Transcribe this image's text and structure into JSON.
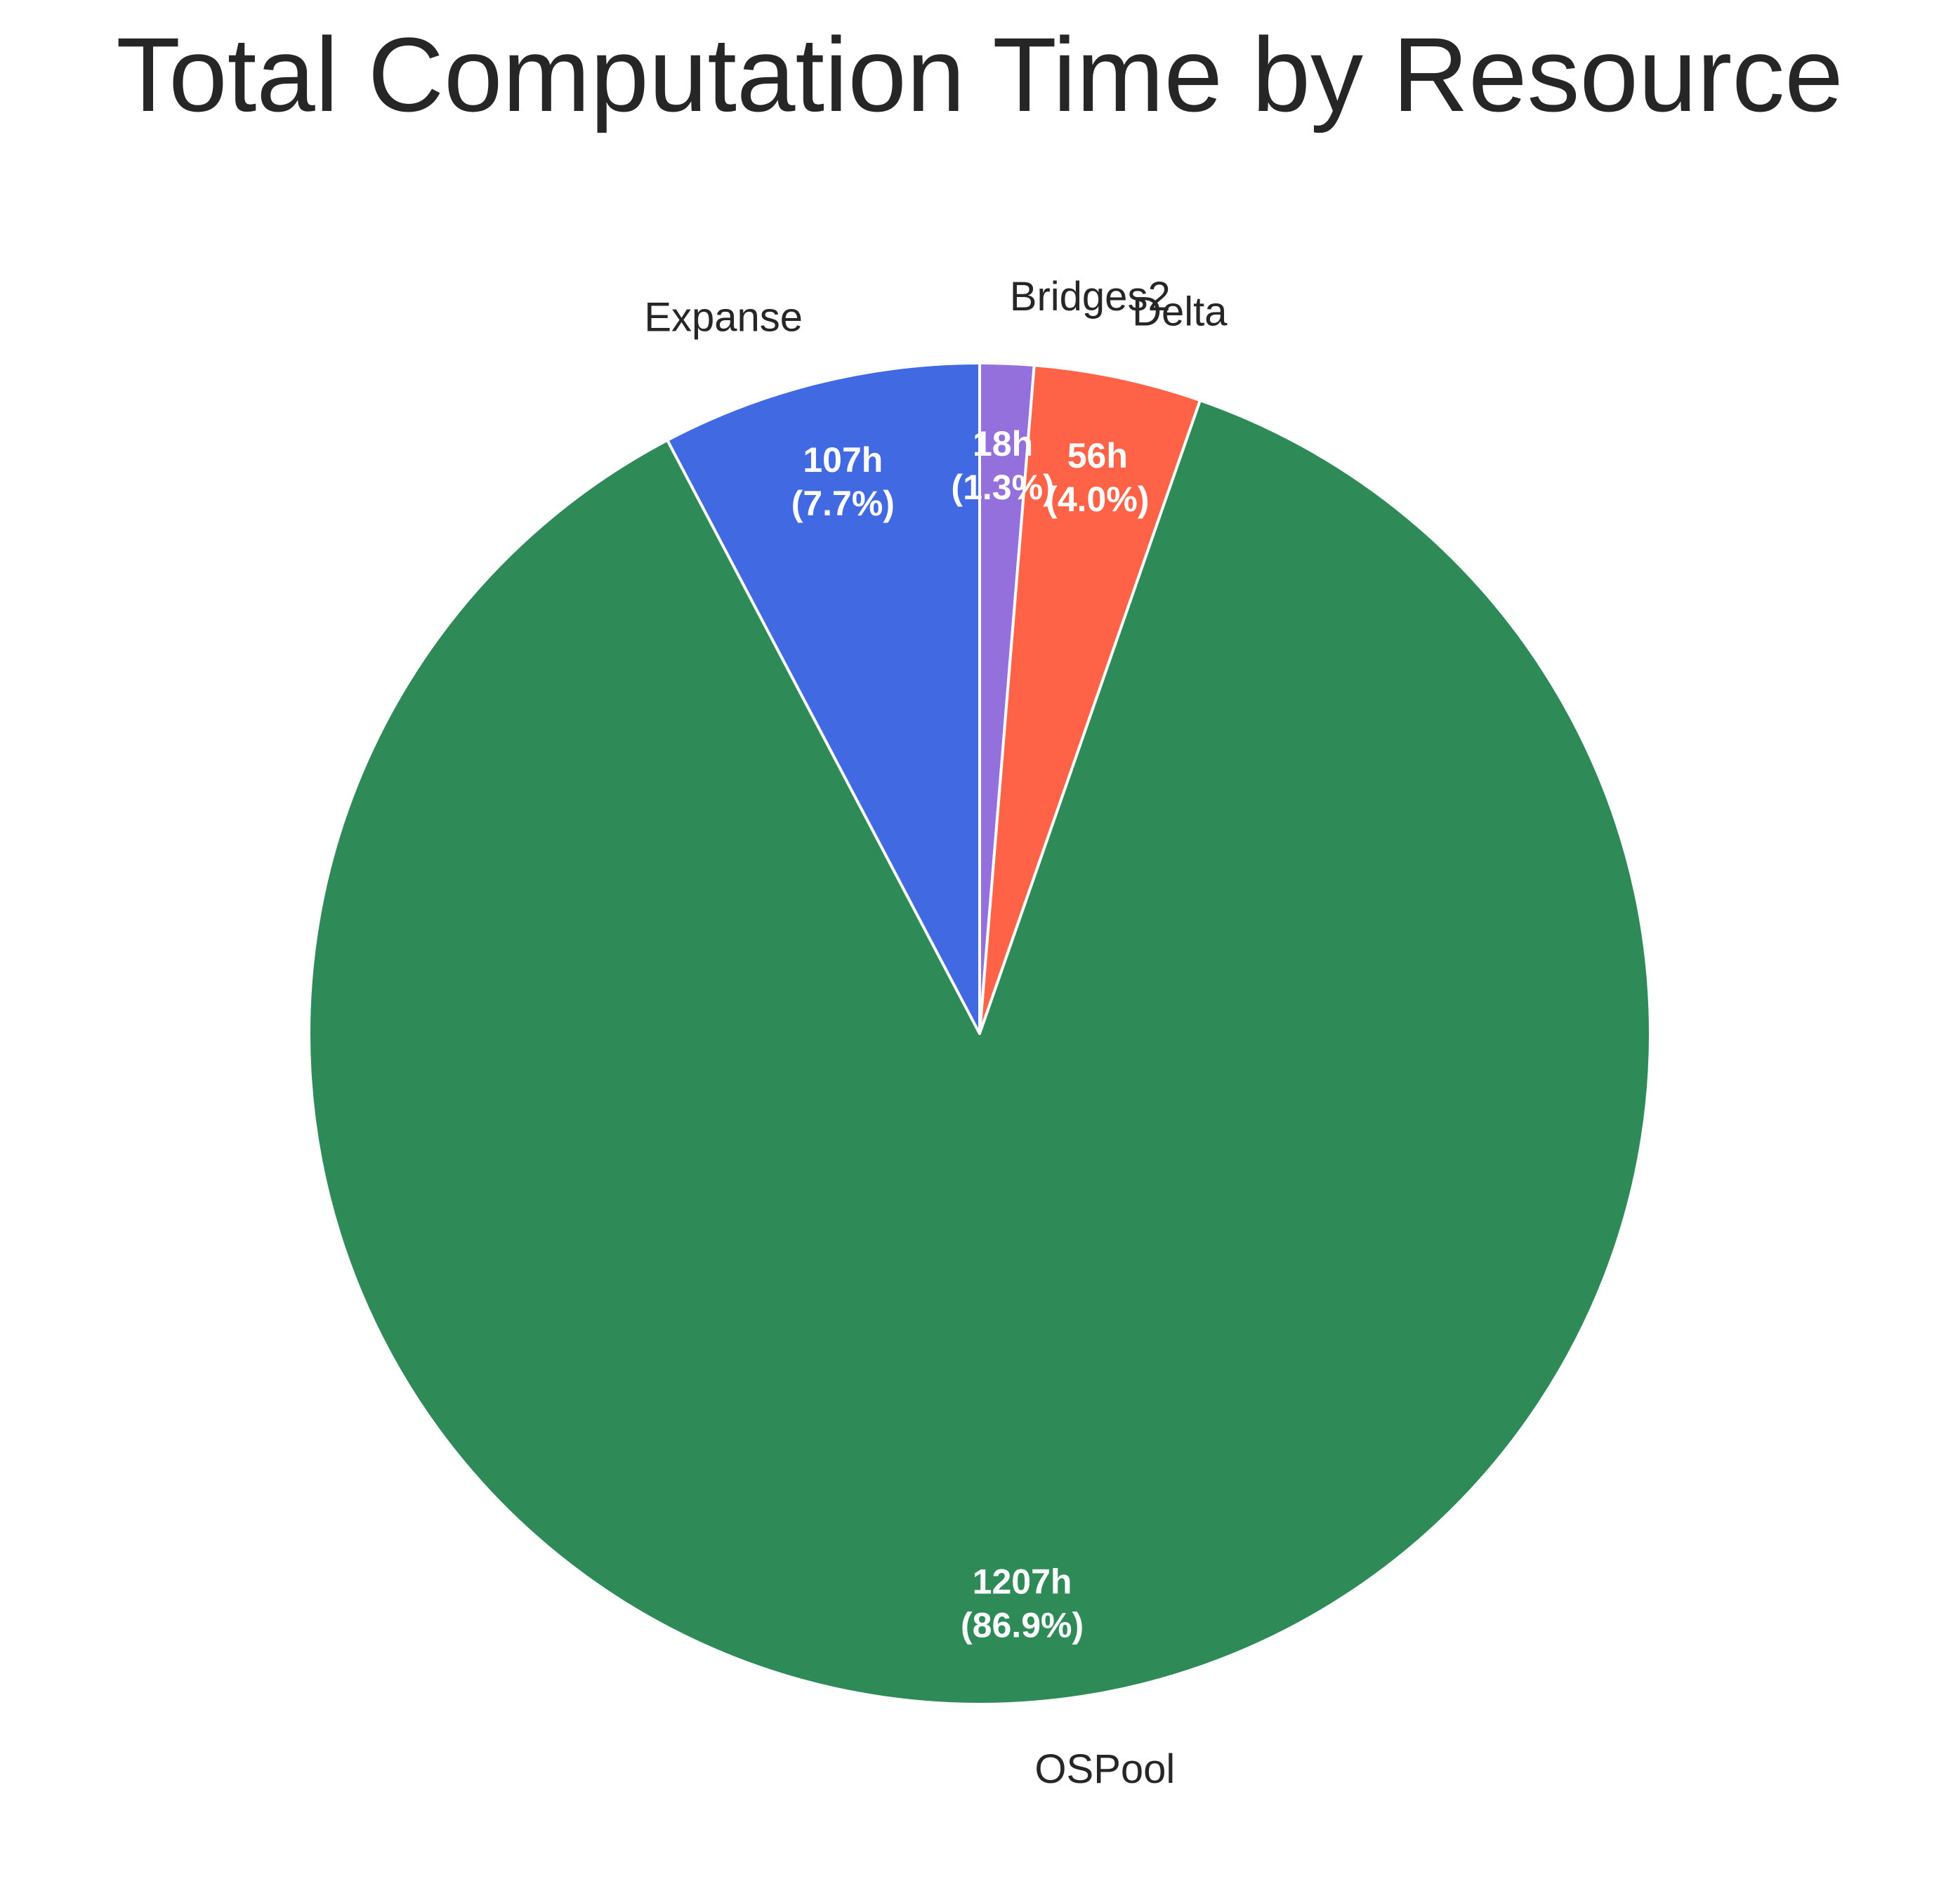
{
  "chart_data": {
    "type": "pie",
    "title": "Total Computation Time by Resource",
    "start_angle_deg": 90,
    "direction": "clockwise",
    "slices": [
      {
        "label": "Bridges2",
        "value": 18,
        "value_text": "18h",
        "pct_text": "(1.3%)",
        "color": "#9370DB"
      },
      {
        "label": "Delta",
        "value": 56,
        "value_text": "56h",
        "pct_text": "(4.0%)",
        "color": "#FF6347"
      },
      {
        "label": "OSPool",
        "value": 1207,
        "value_text": "1207h",
        "pct_text": "(86.9%)",
        "color": "#2E8B57"
      },
      {
        "label": "Expanse",
        "value": 107,
        "value_text": "107h",
        "pct_text": "(7.7%)",
        "color": "#4169E1"
      }
    ]
  }
}
